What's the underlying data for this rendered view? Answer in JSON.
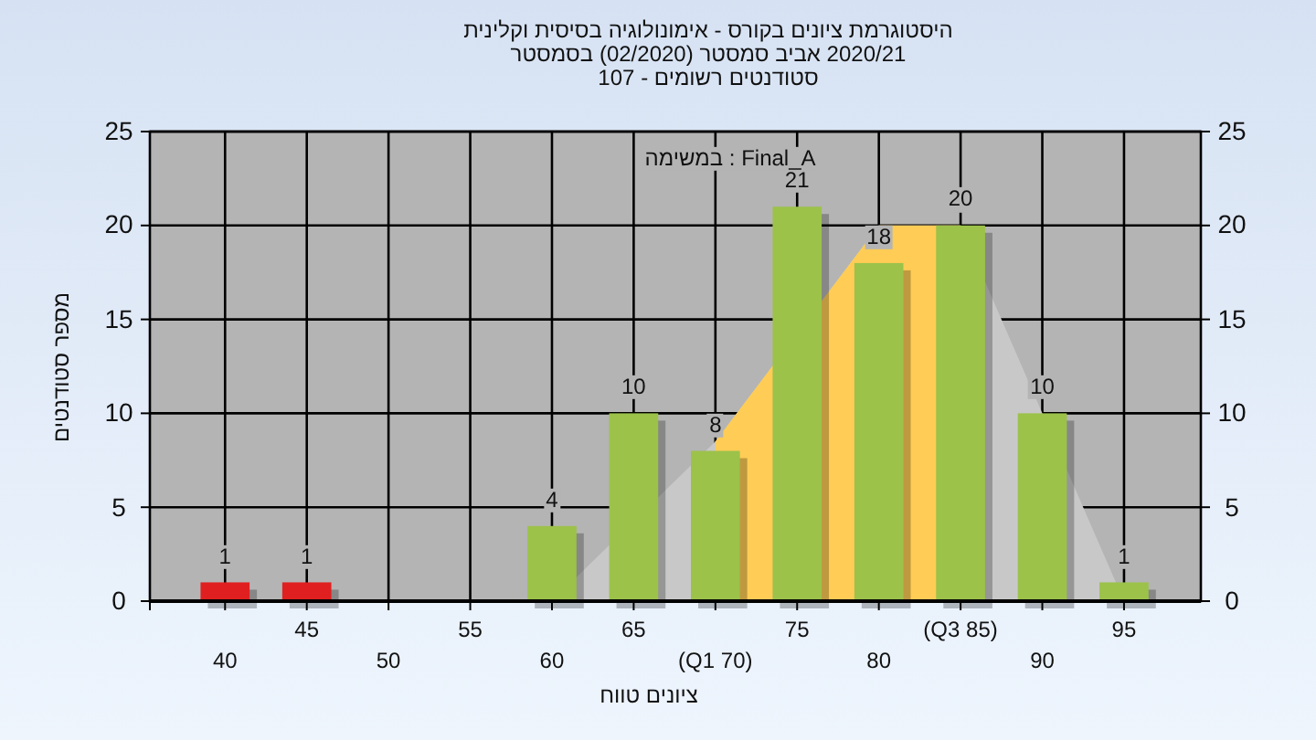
{
  "chart_data": {
    "type": "bar",
    "title": "וקלינית בסיסית אימונולוגיה - בקורס ציונים היסטוגרמת",
    "subtitle": "בסמסטר (02/2020) סמסטר אביב 2020/21\n107 - רשומים סטודנטים",
    "xlabel": "טווח ציונים",
    "ylabel": "סטודנטים מספר",
    "annotations": [
      "במשימה : Final_A"
    ],
    "categories": [
      "40",
      "45",
      "50",
      "55",
      "60",
      "65",
      "(Q1 70)",
      "75",
      "80",
      "(Q3 85)",
      "90",
      "95"
    ],
    "series": [
      {
        "type": "area",
        "color": "#c8c8c8",
        "values": [
          null,
          null,
          null,
          null,
          0,
          null,
          8.5,
          null,
          20,
          20,
          null,
          0
        ]
      },
      {
        "type": "area",
        "color": "#ffcc55",
        "values": [
          null,
          null,
          null,
          null,
          null,
          null,
          8.5,
          null,
          20,
          20,
          null,
          null
        ]
      },
      {
        "colors": [
          "#e02020",
          "#e02020",
          "#9cc24a",
          "#9cc24a",
          "#9cc24a",
          "#9cc24a",
          "#9cc24a",
          "#9cc24a",
          "#9cc24a",
          "#9cc24a",
          "#9cc24a",
          "#9cc24a"
        ],
        "values": [
          1,
          1,
          0,
          0,
          4,
          10,
          8,
          21,
          18,
          20,
          10,
          1
        ],
        "value_labels": [
          "1",
          "1",
          null,
          null,
          "4",
          "10",
          "8",
          "21",
          "18",
          "20",
          "10",
          "1"
        ]
      }
    ],
    "ylim": [
      0,
      25
    ],
    "yticks": [
      0,
      5,
      10,
      15,
      20,
      25
    ],
    "y2lim": [
      0,
      25
    ],
    "y2ticks": [
      0,
      5,
      10,
      15,
      20,
      25
    ],
    "grid": true
  }
}
